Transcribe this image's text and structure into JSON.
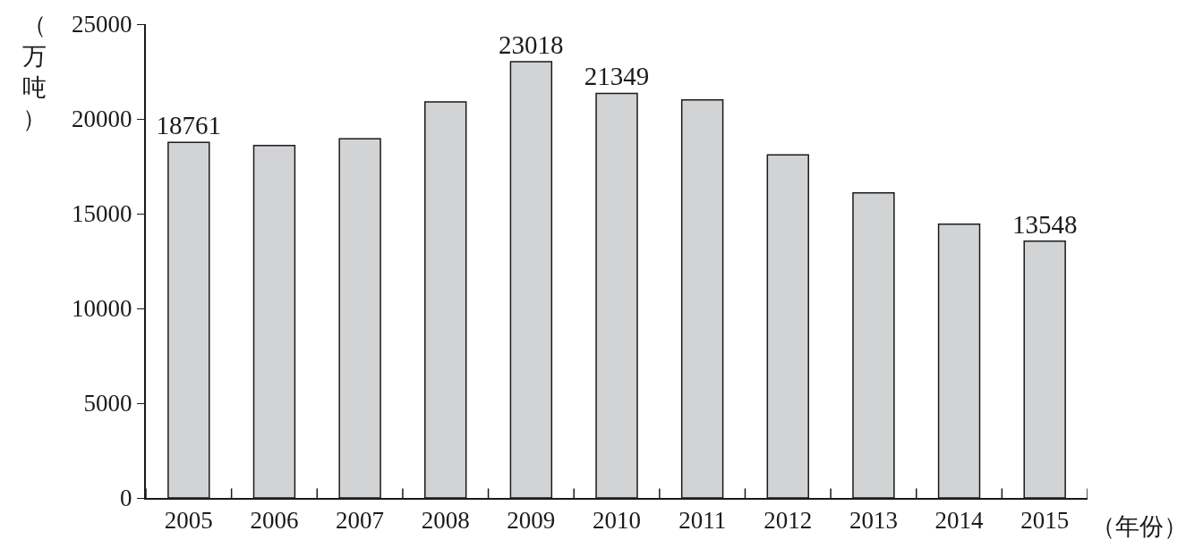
{
  "chart_data": {
    "type": "bar",
    "ylabel": "（万吨）",
    "xlabel": "（年份）",
    "categories": [
      "2005",
      "2006",
      "2007",
      "2008",
      "2009",
      "2010",
      "2011",
      "2012",
      "2013",
      "2014",
      "2015"
    ],
    "values": [
      18761,
      18600,
      18950,
      20900,
      23018,
      21349,
      21000,
      18100,
      16100,
      14450,
      13548
    ],
    "value_labels": [
      "18761",
      null,
      null,
      null,
      "23018",
      "21349",
      null,
      null,
      null,
      null,
      "13548"
    ],
    "color": "#d2d3d5",
    "ylim": [
      0,
      25000
    ],
    "yticks": [
      0,
      5000,
      10000,
      15000,
      20000,
      25000
    ],
    "legend": false
  }
}
